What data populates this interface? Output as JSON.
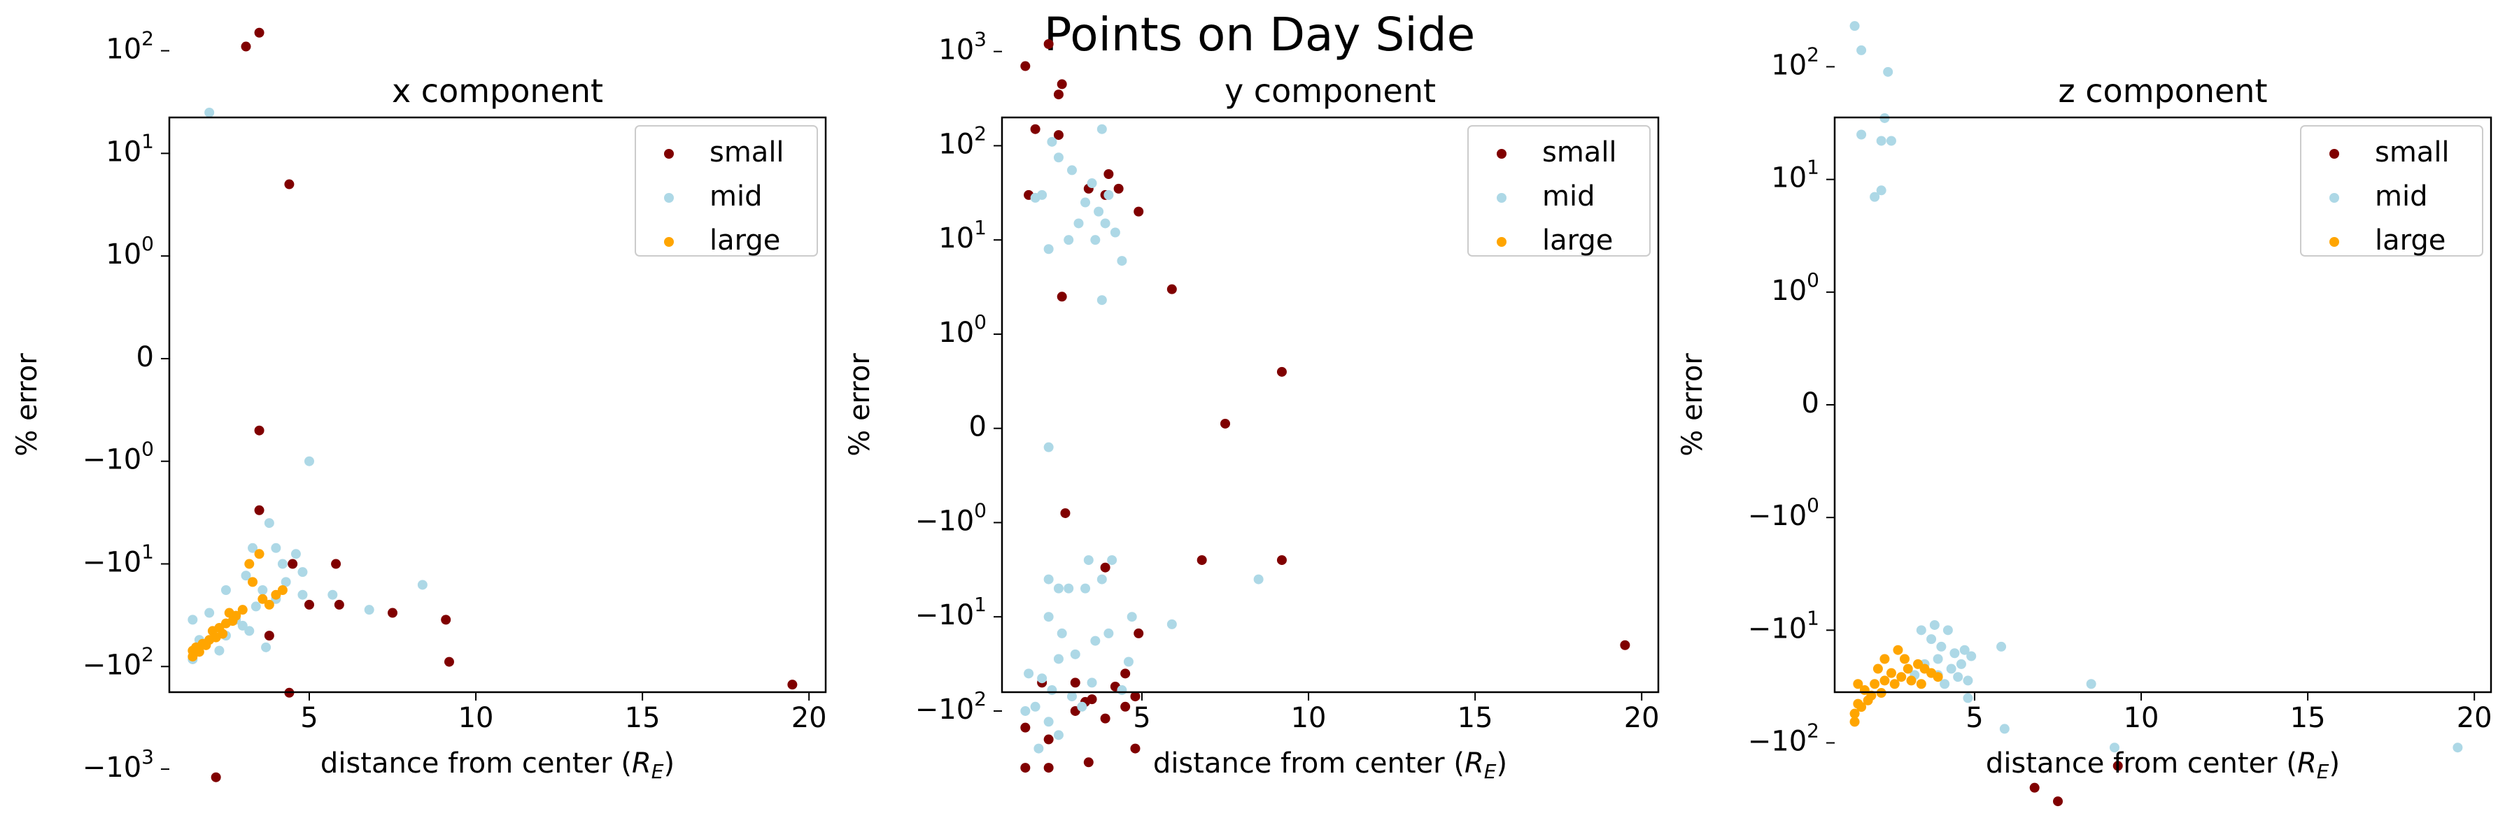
{
  "figure": {
    "title": "Points on Day Side"
  },
  "colors": {
    "small": "#800000",
    "mid": "#add8e6",
    "large": "#ffa500"
  },
  "chart_data": [
    {
      "type": "scatter",
      "title": "x component",
      "xlabel": "distance from center",
      "xlabel_unit": "(R_E)",
      "ylabel": "% error",
      "xlim": [
        0.8,
        20.5
      ],
      "yscale": "symlog",
      "ylim_tick_range": [
        "-10^3",
        "10^2"
      ],
      "x_ticks": [
        5,
        10,
        15,
        20
      ],
      "y_ticks": [
        {
          "label": "10^2",
          "value": 100
        },
        {
          "label": "10^1",
          "value": 10
        },
        {
          "label": "10^0",
          "value": 1
        },
        {
          "label": "0",
          "value": 0
        },
        {
          "label": "-10^0",
          "value": -1
        },
        {
          "label": "-10^1",
          "value": -10
        },
        {
          "label": "-10^2",
          "value": -100
        },
        {
          "label": "-10^3",
          "value": -1000
        }
      ],
      "legend": "top-right",
      "series": [
        {
          "name": "small",
          "points": [
            [
              3.5,
              150
            ],
            [
              3.1,
              110
            ],
            [
              4.4,
              5
            ],
            [
              3.5,
              -0.7
            ],
            [
              3.5,
              -3
            ],
            [
              3.8,
              -50
            ],
            [
              4.5,
              -10
            ],
            [
              5.0,
              -25
            ],
            [
              5.8,
              -10
            ],
            [
              5.9,
              -25
            ],
            [
              7.5,
              -30
            ],
            [
              9.1,
              -35
            ],
            [
              9.2,
              -90
            ],
            [
              4.4,
              -180
            ],
            [
              19.5,
              -150
            ],
            [
              2.2,
              -1200
            ]
          ]
        },
        {
          "name": "mid",
          "points": [
            [
              2.0,
              25
            ],
            [
              5.0,
              -1
            ],
            [
              3.8,
              -4
            ],
            [
              3.3,
              -7
            ],
            [
              4.0,
              -7
            ],
            [
              4.6,
              -8
            ],
            [
              4.2,
              -10
            ],
            [
              4.8,
              -12
            ],
            [
              3.1,
              -13
            ],
            [
              4.3,
              -15
            ],
            [
              2.5,
              -18
            ],
            [
              3.6,
              -18
            ],
            [
              4.8,
              -20
            ],
            [
              5.7,
              -20
            ],
            [
              8.4,
              -16
            ],
            [
              4.0,
              -22
            ],
            [
              3.4,
              -26
            ],
            [
              6.8,
              -28
            ],
            [
              2.0,
              -30
            ],
            [
              1.5,
              -35
            ],
            [
              2.8,
              -35
            ],
            [
              3.0,
              -40
            ],
            [
              1.7,
              -55
            ],
            [
              3.7,
              -65
            ],
            [
              2.3,
              -70
            ],
            [
              1.5,
              -85
            ],
            [
              2.5,
              -50
            ],
            [
              3.2,
              -45
            ]
          ]
        },
        {
          "name": "large",
          "points": [
            [
              3.5,
              -8
            ],
            [
              3.2,
              -10
            ],
            [
              3.3,
              -15
            ],
            [
              4.0,
              -20
            ],
            [
              3.8,
              -25
            ],
            [
              3.0,
              -28
            ],
            [
              2.8,
              -32
            ],
            [
              2.5,
              -38
            ],
            [
              2.3,
              -42
            ],
            [
              2.1,
              -45
            ],
            [
              2.0,
              -55
            ],
            [
              1.8,
              -60
            ],
            [
              1.6,
              -65
            ],
            [
              1.5,
              -70
            ],
            [
              1.5,
              -80
            ],
            [
              1.9,
              -62
            ],
            [
              2.4,
              -48
            ],
            [
              2.7,
              -36
            ],
            [
              2.6,
              -30
            ],
            [
              3.6,
              -22
            ],
            [
              4.2,
              -18
            ],
            [
              2.2,
              -52
            ],
            [
              1.7,
              -72
            ]
          ]
        }
      ]
    },
    {
      "type": "scatter",
      "title": "y component",
      "xlabel": "distance from center",
      "xlabel_unit": "(R_E)",
      "ylabel": "% error",
      "xlim": [
        0.8,
        20.5
      ],
      "yscale": "symlog",
      "x_ticks": [
        5,
        10,
        15,
        20
      ],
      "y_ticks": [
        {
          "label": "10^3",
          "value": 1000
        },
        {
          "label": "10^2",
          "value": 100
        },
        {
          "label": "10^1",
          "value": 10
        },
        {
          "label": "10^0",
          "value": 1
        },
        {
          "label": "0",
          "value": 0
        },
        {
          "label": "-10^0",
          "value": -1
        },
        {
          "label": "-10^1",
          "value": -10
        },
        {
          "label": "-10^2",
          "value": -100
        }
      ],
      "legend": "top-right",
      "series": [
        {
          "name": "small",
          "points": [
            [
              1.5,
              700
            ],
            [
              2.2,
              1200
            ],
            [
              2.5,
              350
            ],
            [
              2.6,
              450
            ],
            [
              1.8,
              150
            ],
            [
              2.5,
              130
            ],
            [
              1.6,
              30
            ],
            [
              3.4,
              35
            ],
            [
              3.9,
              30
            ],
            [
              4.0,
              50
            ],
            [
              4.3,
              35
            ],
            [
              4.9,
              20
            ],
            [
              2.6,
              2.5
            ],
            [
              5.9,
              3
            ],
            [
              9.2,
              0.6
            ],
            [
              7.5,
              0.05
            ],
            [
              2.7,
              -0.9
            ],
            [
              6.8,
              -2.5
            ],
            [
              9.2,
              -2.5
            ],
            [
              3.9,
              -3
            ],
            [
              4.9,
              -15
            ],
            [
              4.5,
              -40
            ],
            [
              3.0,
              -50
            ],
            [
              4.2,
              -55
            ],
            [
              3.5,
              -75
            ],
            [
              3.3,
              -80
            ],
            [
              4.5,
              -90
            ],
            [
              3.0,
              -100
            ],
            [
              3.9,
              -120
            ],
            [
              4.8,
              -70
            ],
            [
              2.0,
              -50
            ],
            [
              1.5,
              -150
            ],
            [
              2.2,
              -200
            ],
            [
              4.8,
              -250
            ],
            [
              1.5,
              -400
            ],
            [
              3.4,
              -350
            ],
            [
              2.2,
              -400
            ],
            [
              19.5,
              -20
            ]
          ]
        },
        {
          "name": "mid",
          "points": [
            [
              2.3,
              110
            ],
            [
              3.8,
              150
            ],
            [
              2.5,
              75
            ],
            [
              3.5,
              40
            ],
            [
              4.0,
              30
            ],
            [
              1.8,
              28
            ],
            [
              2.0,
              30
            ],
            [
              2.9,
              55
            ],
            [
              3.1,
              15
            ],
            [
              3.3,
              25
            ],
            [
              3.7,
              20
            ],
            [
              3.9,
              15
            ],
            [
              4.2,
              12
            ],
            [
              2.2,
              8
            ],
            [
              2.8,
              10
            ],
            [
              3.6,
              10
            ],
            [
              4.4,
              6
            ],
            [
              3.8,
              2.3
            ],
            [
              2.2,
              -0.2
            ],
            [
              3.4,
              -2.5
            ],
            [
              4.1,
              -2.5
            ],
            [
              2.2,
              -4
            ],
            [
              2.5,
              -5
            ],
            [
              2.8,
              -5
            ],
            [
              3.3,
              -5
            ],
            [
              3.8,
              -4
            ],
            [
              4.7,
              -10
            ],
            [
              2.2,
              -10
            ],
            [
              2.6,
              -15
            ],
            [
              3.6,
              -18
            ],
            [
              4.0,
              -15
            ],
            [
              3.0,
              -25
            ],
            [
              2.5,
              -28
            ],
            [
              5.9,
              -12
            ],
            [
              8.5,
              -4
            ],
            [
              1.6,
              -40
            ],
            [
              2.0,
              -45
            ],
            [
              1.5,
              -100
            ],
            [
              2.3,
              -60
            ],
            [
              2.9,
              -70
            ],
            [
              3.5,
              -50
            ],
            [
              4.6,
              -30
            ],
            [
              1.8,
              -90
            ],
            [
              2.2,
              -130
            ],
            [
              1.9,
              -250
            ],
            [
              2.5,
              -180
            ],
            [
              3.2,
              -90
            ],
            [
              4.4,
              -60
            ]
          ]
        },
        {
          "name": "large",
          "points": []
        }
      ]
    },
    {
      "type": "scatter",
      "title": "z component",
      "xlabel": "distance from center",
      "xlabel_unit": "(R_E)",
      "ylabel": "% error",
      "xlim": [
        0.8,
        20.5
      ],
      "yscale": "symlog",
      "x_ticks": [
        5,
        10,
        15,
        20
      ],
      "y_ticks": [
        {
          "label": "10^2",
          "value": 100
        },
        {
          "label": "10^1",
          "value": 10
        },
        {
          "label": "10^0",
          "value": 1
        },
        {
          "label": "0",
          "value": 0
        },
        {
          "label": "-10^0",
          "value": -1
        },
        {
          "label": "-10^1",
          "value": -10
        },
        {
          "label": "-10^2",
          "value": -100
        }
      ],
      "legend": "top-right",
      "series": [
        {
          "name": "small",
          "points": [
            [
              6.8,
              -250
            ],
            [
              7.5,
              -330
            ],
            [
              9.3,
              -160
            ]
          ]
        },
        {
          "name": "mid",
          "points": [
            [
              1.4,
              230
            ],
            [
              1.6,
              140
            ],
            [
              2.4,
              90
            ],
            [
              2.3,
              35
            ],
            [
              1.6,
              25
            ],
            [
              2.2,
              22
            ],
            [
              2.5,
              22
            ],
            [
              2.0,
              7
            ],
            [
              2.2,
              8
            ],
            [
              3.8,
              -9
            ],
            [
              4.2,
              -10
            ],
            [
              3.4,
              -10
            ],
            [
              3.7,
              -12
            ],
            [
              4.0,
              -14
            ],
            [
              4.4,
              -16
            ],
            [
              4.7,
              -15
            ],
            [
              3.9,
              -18
            ],
            [
              4.9,
              -17
            ],
            [
              5.8,
              -14
            ],
            [
              4.3,
              -22
            ],
            [
              4.5,
              -26
            ],
            [
              4.8,
              -28
            ],
            [
              3.9,
              -25
            ],
            [
              4.1,
              -30
            ],
            [
              4.8,
              -40
            ],
            [
              5.9,
              -75
            ],
            [
              8.5,
              -30
            ],
            [
              9.2,
              -110
            ],
            [
              19.5,
              -110
            ],
            [
              3.5,
              -20
            ],
            [
              3.2,
              -25
            ],
            [
              4.6,
              -20
            ]
          ]
        },
        {
          "name": "large",
          "points": [
            [
              2.3,
              -18
            ],
            [
              2.1,
              -22
            ],
            [
              2.7,
              -15
            ],
            [
              2.9,
              -18
            ],
            [
              3.0,
              -22
            ],
            [
              3.3,
              -20
            ],
            [
              3.5,
              -22
            ],
            [
              3.7,
              -24
            ],
            [
              3.9,
              -26
            ],
            [
              2.5,
              -24
            ],
            [
              2.3,
              -28
            ],
            [
              2.0,
              -30
            ],
            [
              1.7,
              -34
            ],
            [
              1.5,
              -30
            ],
            [
              1.5,
              -45
            ],
            [
              1.4,
              -55
            ],
            [
              1.4,
              -65
            ],
            [
              1.8,
              -42
            ],
            [
              2.2,
              -36
            ],
            [
              2.6,
              -30
            ],
            [
              3.1,
              -28
            ],
            [
              2.8,
              -26
            ],
            [
              3.4,
              -30
            ],
            [
              1.9,
              -38
            ],
            [
              1.6,
              -48
            ]
          ]
        }
      ]
    }
  ]
}
